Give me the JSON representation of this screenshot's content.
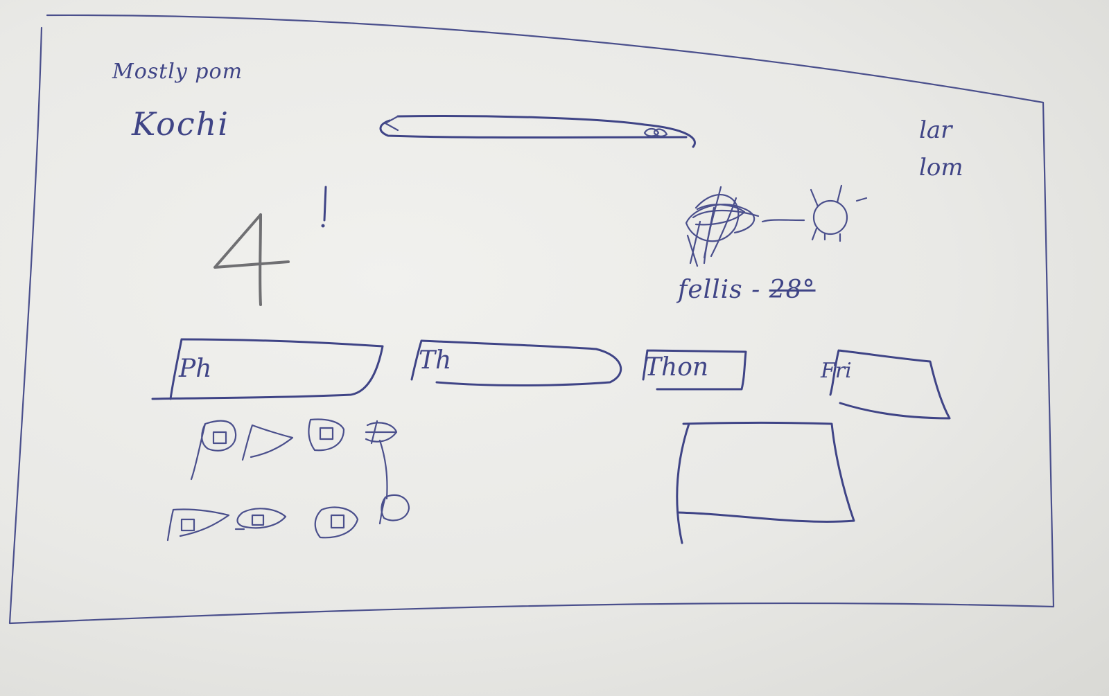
{
  "header": {
    "location_subtitle": "Mostly pom",
    "location_title": "Kochi",
    "search_icon": "search-icon",
    "links": [
      "lar",
      "lom"
    ]
  },
  "hero": {
    "number": "4",
    "mark": "!"
  },
  "weather": {
    "icon": "sun-icon",
    "description": "fellis",
    "temperature": "28°"
  },
  "tabs": [
    "Ph",
    "Th",
    "Thon",
    "Fri"
  ],
  "ink_color": "#3f4486"
}
